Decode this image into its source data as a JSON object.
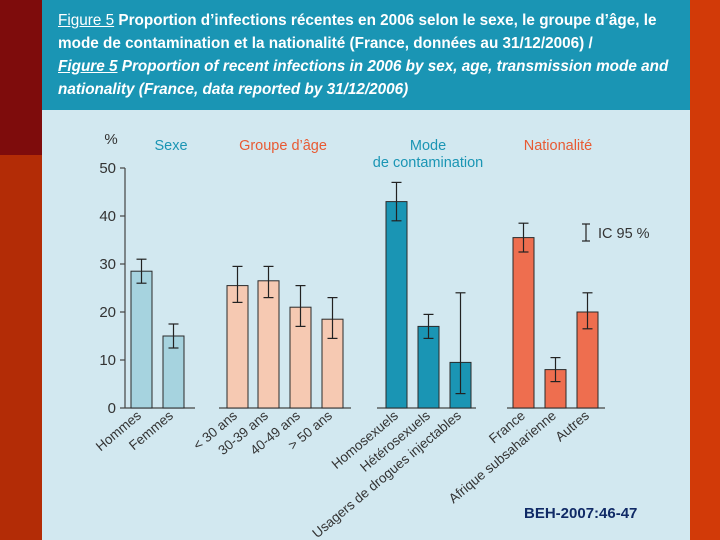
{
  "title": {
    "fr_label": "Figure 5",
    "fr_text": "Proportion d’infections récentes en 2006 selon le sexe, le groupe d’âge, le mode de contamination et la nationalité (France, données au 31/12/2006) /",
    "en_label": "Figure 5",
    "en_text": "Proportion of recent infections in 2006 by sex, age, transmission mode and nationality (France, data reported by 31/12/2006)"
  },
  "colors": {
    "header": "#1a95b4",
    "sexe": "#a6d3df",
    "age": "#f6c9b2",
    "mode": "#1a95b4",
    "nationalite": "#ee6e4f",
    "axis": "#444444"
  },
  "chart_data": {
    "type": "bar",
    "ylabel": "%",
    "ylim": [
      0,
      50
    ],
    "yticks": [
      "0",
      "10",
      "20",
      "30",
      "40",
      "50"
    ],
    "legend_ci": "IC 95 %",
    "groups": [
      {
        "name": "Sexe",
        "color_key": "sexe",
        "categories": [
          "Hommes",
          "Femmes"
        ],
        "values": [
          28.5,
          15
        ],
        "ci_low": [
          26,
          12.5
        ],
        "ci_high": [
          31,
          17.5
        ]
      },
      {
        "name": "Groupe d’âge",
        "color_key": "age",
        "categories": [
          "< 30 ans",
          "30-39 ans",
          "40-49 ans",
          "> 50 ans"
        ],
        "values": [
          25.5,
          26.5,
          21,
          18.5
        ],
        "ci_low": [
          22,
          23,
          17,
          14.5
        ],
        "ci_high": [
          29.5,
          29.5,
          25.5,
          23
        ]
      },
      {
        "name_line1": "Mode",
        "name_line2": "de contamination",
        "color_key": "mode",
        "categories": [
          "Homosexuels",
          "Hétérosexuels",
          "Usagers de drogues injectables"
        ],
        "values": [
          43,
          17,
          9.5
        ],
        "ci_low": [
          39,
          14.5,
          3
        ],
        "ci_high": [
          47,
          19.5,
          24
        ]
      },
      {
        "name": "Nationalité",
        "color_key": "nationalite",
        "categories": [
          "France",
          "Afrique subsaharienne",
          "Autres"
        ],
        "values": [
          35.5,
          8,
          20
        ],
        "ci_low": [
          32.5,
          5.5,
          16.5
        ],
        "ci_high": [
          38.5,
          10.5,
          24
        ]
      }
    ]
  },
  "citation": "BEH-2007:46-47"
}
